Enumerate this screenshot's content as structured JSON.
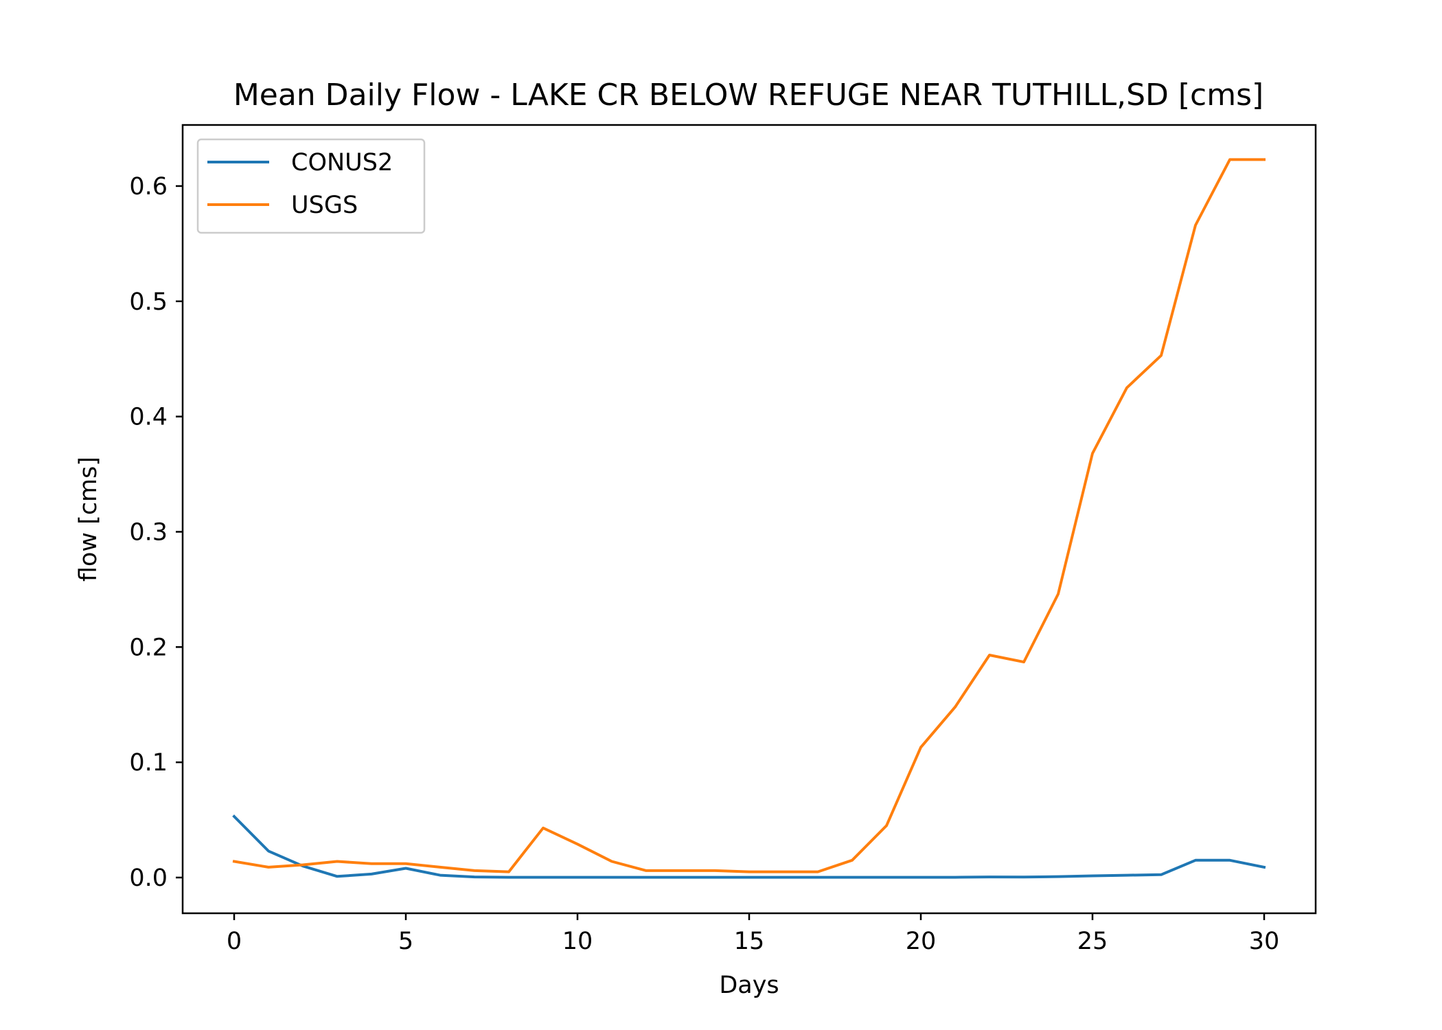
{
  "chart_data": {
    "type": "line",
    "title": "Mean Daily Flow - LAKE CR BELOW REFUGE NEAR TUTHILL,SD [cms]",
    "xlabel": "Days",
    "ylabel": "flow [cms]",
    "xlim": [
      -1.5,
      31.5
    ],
    "ylim": [
      -0.031,
      0.653
    ],
    "xticks": [
      0,
      5,
      10,
      15,
      20,
      25,
      30
    ],
    "xtick_labels": [
      "0",
      "5",
      "10",
      "15",
      "20",
      "25",
      "30"
    ],
    "yticks": [
      0.0,
      0.1,
      0.2,
      0.3,
      0.4,
      0.5,
      0.6
    ],
    "ytick_labels": [
      "0.0",
      "0.1",
      "0.2",
      "0.3",
      "0.4",
      "0.5",
      "0.6"
    ],
    "grid": false,
    "legend_position": "upper left",
    "x": [
      0,
      1,
      2,
      3,
      4,
      5,
      6,
      7,
      8,
      9,
      10,
      11,
      12,
      13,
      14,
      15,
      16,
      17,
      18,
      19,
      20,
      21,
      22,
      23,
      24,
      25,
      26,
      27,
      28,
      29,
      30
    ],
    "series": [
      {
        "name": "CONUS2",
        "color": "#1f77b4",
        "values": [
          0.053,
          0.023,
          0.01,
          0.001,
          0.003,
          0.008,
          0.002,
          0.0005,
          0.0002,
          0.0002,
          0.0002,
          0.0002,
          0.0002,
          0.0002,
          0.0002,
          0.0002,
          0.0002,
          0.0002,
          0.0002,
          0.0002,
          0.0002,
          0.0002,
          0.0005,
          0.0004,
          0.0008,
          0.0015,
          0.002,
          0.0025,
          0.015,
          0.015,
          0.009
        ]
      },
      {
        "name": "USGS",
        "color": "#ff7f0e",
        "values": [
          0.014,
          0.009,
          0.011,
          0.014,
          0.012,
          0.012,
          0.009,
          0.006,
          0.005,
          0.043,
          0.029,
          0.014,
          0.006,
          0.006,
          0.006,
          0.005,
          0.005,
          0.005,
          0.015,
          0.045,
          0.113,
          0.148,
          0.193,
          0.187,
          0.246,
          0.368,
          0.425,
          0.453,
          0.566,
          0.623,
          0.623
        ]
      }
    ]
  }
}
